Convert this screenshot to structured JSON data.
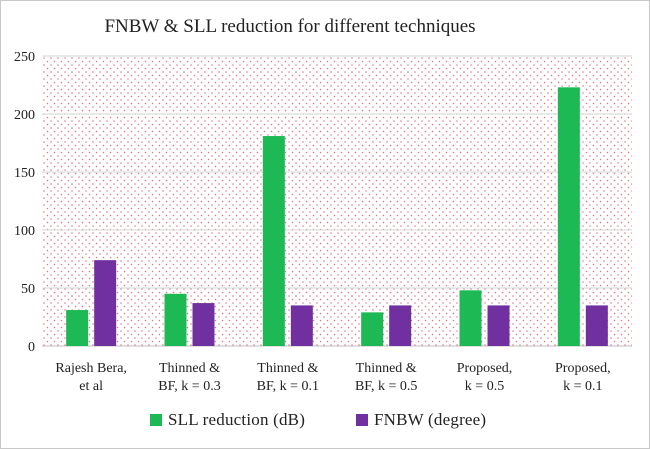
{
  "chart_data": {
    "type": "bar",
    "title": "FNBW & SLL reduction for different techniques",
    "xlabel": "",
    "ylabel": "",
    "categories": [
      [
        "Rajesh Bera,",
        "et al"
      ],
      [
        "Thinned &",
        "BF,  k = 0.3"
      ],
      [
        "Thinned &",
        "BF,  k = 0.1"
      ],
      [
        "Thinned &",
        "BF,  k = 0.5"
      ],
      [
        "Proposed,",
        "k = 0.5"
      ],
      [
        "Proposed,",
        "k = 0.1"
      ]
    ],
    "series": [
      {
        "name": "SLL reduction (dB)",
        "color": "#1db954",
        "values": [
          31,
          45,
          181,
          29,
          48,
          223
        ]
      },
      {
        "name": "FNBW (degree)",
        "color": "#7030a0",
        "values": [
          74,
          37,
          35,
          35,
          35,
          35
        ]
      }
    ],
    "ylim": [
      0,
      250
    ],
    "yticks": [
      0,
      50,
      100,
      150,
      200,
      250
    ],
    "grid": true,
    "legend_position": "bottom",
    "background_pattern": "red dotted plot area"
  }
}
